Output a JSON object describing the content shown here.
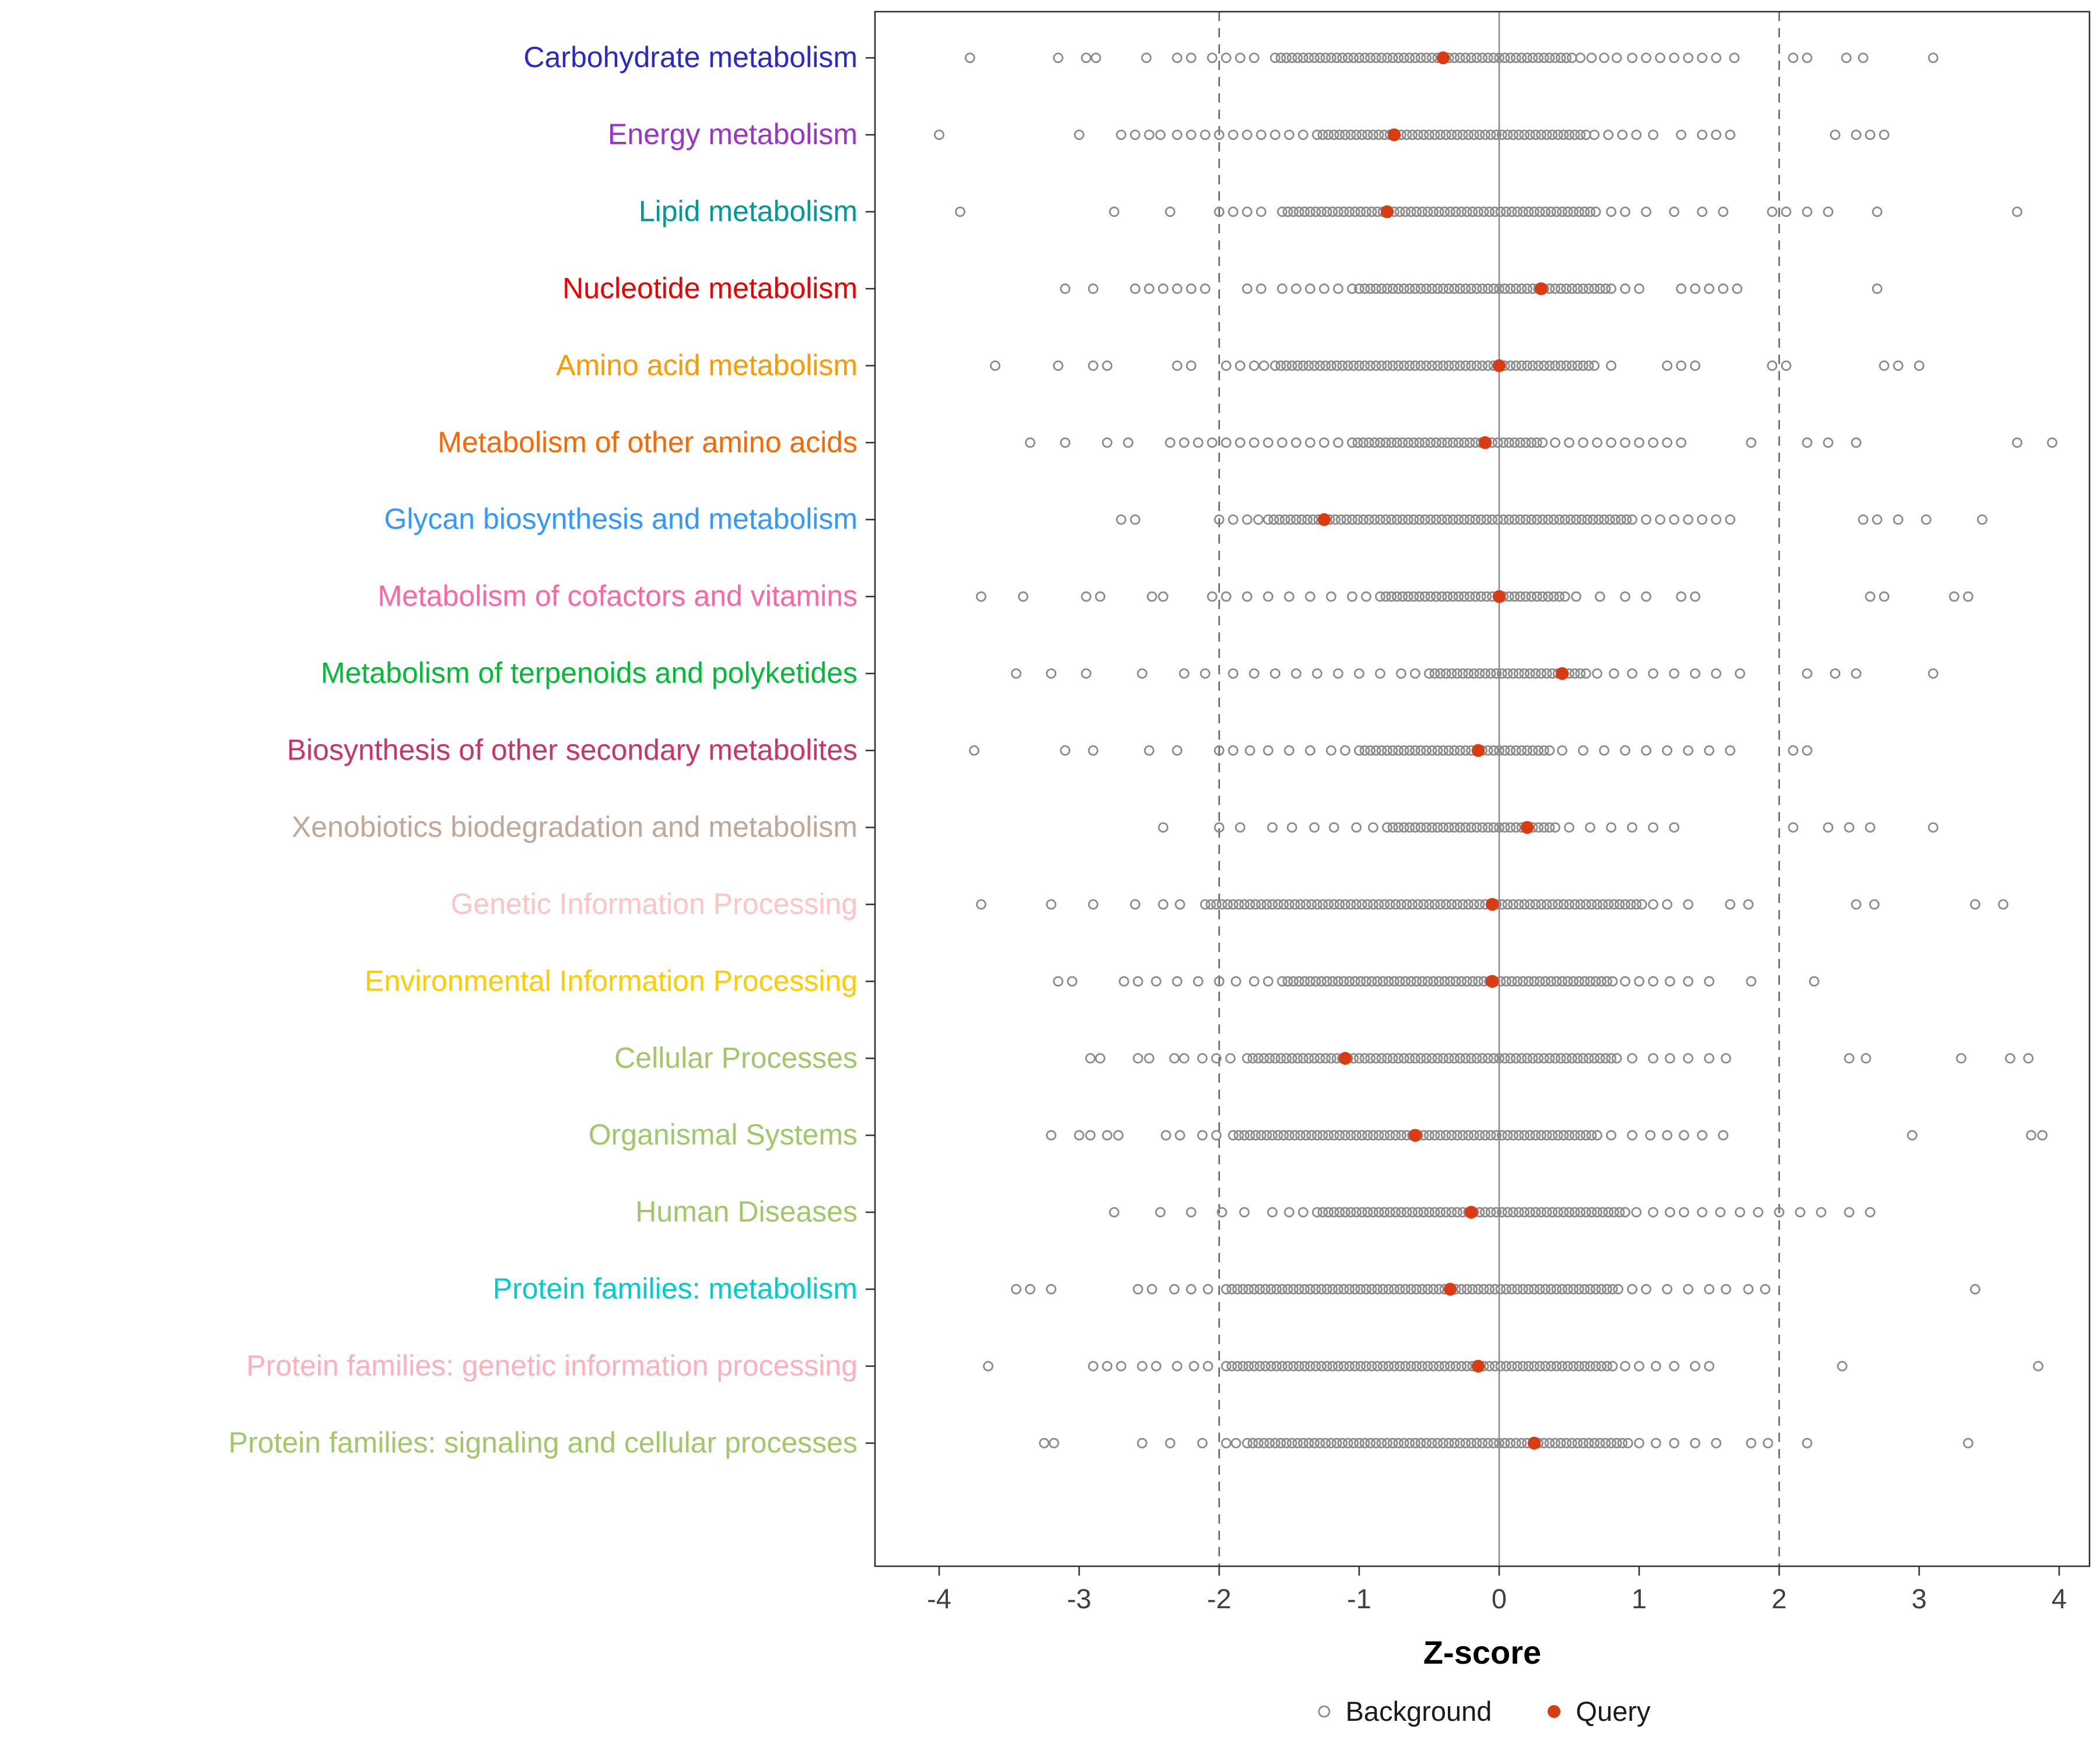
{
  "figure": {
    "background": "#ffffff",
    "panel_border": "#2e2e2e",
    "zero_line_color": "#8a8a8a",
    "dashed_line_color": "#5c5c5c",
    "tick_label_color": "#404040"
  },
  "chart_data": {
    "type": "scatter",
    "title": "",
    "xlabel": "Z-score",
    "ylabel": "",
    "xlim": [
      -4.4,
      4.2
    ],
    "x_ticks": [
      -4,
      -3,
      -2,
      -1,
      0,
      1,
      2,
      3,
      4
    ],
    "grid": "off",
    "band_step": 0.04,
    "ref_lines": {
      "zero": 0,
      "dashed": [
        -2,
        2
      ]
    },
    "point_colors": {
      "background_stroke": "#8c8c8c",
      "query_fill": "#d93b12"
    },
    "legend": [
      {
        "label": "Background",
        "type": "open-circle"
      },
      {
        "label": "Query",
        "type": "filled-circle"
      }
    ],
    "legend_position": "bottom",
    "categories": [
      {
        "label": "Carbohydrate metabolism",
        "color": "#2929cc",
        "query": -0.4,
        "band": [
          -1.6,
          0.5
        ],
        "scatter": [
          -3.78,
          -3.15,
          -2.95,
          -2.88,
          -2.52,
          -2.3,
          -2.2,
          -2.05,
          -1.95,
          -1.85,
          -1.75,
          0.58,
          0.66,
          0.75,
          0.84,
          0.95,
          1.05,
          1.15,
          1.25,
          1.35,
          1.45,
          1.55,
          1.68,
          2.1,
          2.2,
          2.48,
          2.6,
          3.1
        ]
      },
      {
        "label": "Energy metabolism",
        "color": "#9933cc",
        "query": -0.75,
        "band": [
          -1.3,
          0.6
        ],
        "scatter": [
          -4.0,
          -3.0,
          -2.7,
          -2.6,
          -2.5,
          -2.42,
          -2.3,
          -2.2,
          -2.1,
          -2.0,
          -1.9,
          -1.8,
          -1.7,
          -1.6,
          -1.5,
          -1.4,
          0.68,
          0.78,
          0.88,
          0.98,
          1.1,
          1.3,
          1.45,
          1.55,
          1.65,
          2.4,
          2.55,
          2.65,
          2.75
        ]
      },
      {
        "label": "Lipid metabolism",
        "color": "#009999",
        "query": -0.8,
        "band": [
          -1.55,
          0.7
        ],
        "scatter": [
          -3.85,
          -2.75,
          -2.35,
          -2.0,
          -1.9,
          -1.8,
          -1.7,
          0.8,
          0.9,
          1.05,
          1.25,
          1.45,
          1.6,
          1.95,
          2.05,
          2.2,
          2.35,
          2.7,
          3.7
        ]
      },
      {
        "label": "Nucleotide metabolism",
        "color": "#ee0000",
        "query": 0.3,
        "band": [
          -1.0,
          0.8
        ],
        "scatter": [
          -3.1,
          -2.9,
          -2.6,
          -2.5,
          -2.4,
          -2.3,
          -2.2,
          -2.1,
          -1.8,
          -1.7,
          -1.55,
          -1.45,
          -1.35,
          -1.25,
          -1.15,
          -1.05,
          0.9,
          1.0,
          1.3,
          1.4,
          1.5,
          1.6,
          1.7,
          2.7
        ]
      },
      {
        "label": "Amino acid metabolism",
        "color": "#ff9900",
        "query": 0.0,
        "band": [
          -1.6,
          0.7
        ],
        "scatter": [
          -3.6,
          -3.15,
          -2.9,
          -2.8,
          -2.3,
          -2.2,
          -1.95,
          -1.85,
          -1.75,
          -1.68,
          0.8,
          1.2,
          1.3,
          1.4,
          1.95,
          2.05,
          2.75,
          2.85,
          3.0
        ]
      },
      {
        "label": "Metabolism of other amino acids",
        "color": "#ff6600",
        "query": -0.1,
        "band": [
          -1.05,
          0.3
        ],
        "scatter": [
          -3.35,
          -3.1,
          -2.8,
          -2.65,
          -2.35,
          -2.25,
          -2.15,
          -2.05,
          -1.95,
          -1.85,
          -1.75,
          -1.65,
          -1.55,
          -1.45,
          -1.35,
          -1.25,
          -1.15,
          0.4,
          0.5,
          0.6,
          0.7,
          0.8,
          0.9,
          1.0,
          1.1,
          1.2,
          1.3,
          1.8,
          2.2,
          2.35,
          2.55,
          3.7,
          3.95
        ]
      },
      {
        "label": "Glycan biosynthesis and metabolism",
        "color": "#3399ff",
        "query": -1.25,
        "band": [
          -1.65,
          0.95
        ],
        "scatter": [
          -2.7,
          -2.6,
          -2.0,
          -1.9,
          -1.8,
          -1.72,
          1.05,
          1.15,
          1.25,
          1.35,
          1.45,
          1.55,
          1.65,
          2.6,
          2.7,
          2.85,
          3.05,
          3.45
        ]
      },
      {
        "label": "Metabolism of cofactors and vitamins",
        "color": "#ff66a3",
        "query": 0.0,
        "band": [
          -0.85,
          0.45
        ],
        "scatter": [
          -3.7,
          -3.4,
          -2.95,
          -2.85,
          -2.48,
          -2.4,
          -2.05,
          -1.95,
          -1.8,
          -1.65,
          -1.5,
          -1.35,
          -1.2,
          -1.05,
          -0.95,
          0.55,
          0.72,
          0.9,
          1.05,
          1.3,
          1.4,
          2.65,
          2.75,
          3.25,
          3.35
        ]
      },
      {
        "label": "Metabolism of terpenoids and polyketides",
        "color": "#00bb33",
        "query": 0.45,
        "band": [
          -0.5,
          0.6
        ],
        "scatter": [
          -3.45,
          -3.2,
          -2.95,
          -2.55,
          -2.25,
          -2.1,
          -1.9,
          -1.75,
          -1.6,
          -1.45,
          -1.3,
          -1.15,
          -1.0,
          -0.85,
          -0.7,
          -0.6,
          0.7,
          0.82,
          0.95,
          1.1,
          1.25,
          1.4,
          1.55,
          1.72,
          2.2,
          2.4,
          2.55,
          3.1
        ]
      },
      {
        "label": "Biosynthesis of other secondary metabolites",
        "color": "#cc3366",
        "query": -0.15,
        "band": [
          -1.0,
          0.35
        ],
        "scatter": [
          -3.75,
          -3.1,
          -2.9,
          -2.5,
          -2.3,
          -2.0,
          -1.9,
          -1.78,
          -1.65,
          -1.5,
          -1.35,
          -1.2,
          -1.1,
          0.45,
          0.6,
          0.75,
          0.9,
          1.05,
          1.2,
          1.35,
          1.5,
          1.65,
          2.1,
          2.2
        ]
      },
      {
        "label": "Xenobiotics biodegradation and metabolism",
        "color": "#c2a797",
        "query": 0.2,
        "band": [
          -0.8,
          0.4
        ],
        "scatter": [
          -2.4,
          -2.0,
          -1.85,
          -1.62,
          -1.48,
          -1.32,
          -1.18,
          -1.02,
          -0.9,
          0.5,
          0.65,
          0.8,
          0.95,
          1.1,
          1.25,
          2.1,
          2.35,
          2.5,
          2.65,
          3.1
        ]
      },
      {
        "label": "Genetic Information Processing",
        "color": "#ffc4c4",
        "query": -0.05,
        "band": [
          -2.1,
          1.0
        ],
        "scatter": [
          -3.7,
          -3.2,
          -2.9,
          -2.6,
          -2.4,
          -2.28,
          1.1,
          1.2,
          1.35,
          1.65,
          1.78,
          2.55,
          2.68,
          3.4,
          3.6
        ]
      },
      {
        "label": "Environmental Information Processing",
        "color": "#ffcc00",
        "query": -0.05,
        "band": [
          -1.55,
          0.8
        ],
        "scatter": [
          -3.15,
          -3.05,
          -2.68,
          -2.58,
          -2.45,
          -2.3,
          -2.15,
          -2.0,
          -1.88,
          -1.75,
          -1.65,
          0.9,
          1.0,
          1.1,
          1.22,
          1.35,
          1.5,
          1.8,
          2.25
        ]
      },
      {
        "label": "Cellular Processes",
        "color": "#a0c868",
        "query": -1.1,
        "band": [
          -1.8,
          0.85
        ],
        "scatter": [
          -2.92,
          -2.85,
          -2.58,
          -2.5,
          -2.32,
          -2.25,
          -2.12,
          -2.02,
          -1.92,
          0.95,
          1.1,
          1.22,
          1.35,
          1.5,
          1.62,
          2.5,
          2.62,
          3.3,
          3.65,
          3.78
        ]
      },
      {
        "label": "Organismal Systems",
        "color": "#a0c868",
        "query": -0.6,
        "band": [
          -1.9,
          0.7
        ],
        "scatter": [
          -3.2,
          -3.0,
          -2.92,
          -2.8,
          -2.72,
          -2.38,
          -2.28,
          -2.12,
          -2.02,
          0.8,
          0.95,
          1.08,
          1.2,
          1.32,
          1.45,
          1.6,
          2.95,
          3.8,
          3.88
        ]
      },
      {
        "label": "Human Diseases",
        "color": "#a0c868",
        "query": -0.2,
        "band": [
          -1.3,
          0.9
        ],
        "scatter": [
          -2.75,
          -2.42,
          -2.2,
          -1.98,
          -1.82,
          -1.62,
          -1.5,
          -1.4,
          0.98,
          1.1,
          1.22,
          1.32,
          1.45,
          1.58,
          1.72,
          1.85,
          2.0,
          2.15,
          2.3,
          2.5,
          2.65
        ]
      },
      {
        "label": "Protein families: metabolism",
        "color": "#00cccc",
        "query": -0.35,
        "band": [
          -1.95,
          0.85
        ],
        "scatter": [
          -3.45,
          -3.35,
          -3.2,
          -2.58,
          -2.48,
          -2.32,
          -2.2,
          -2.08,
          0.95,
          1.05,
          1.2,
          1.35,
          1.5,
          1.62,
          1.78,
          1.9,
          3.4
        ]
      },
      {
        "label": "Protein families: genetic information processing",
        "color": "#ffb0bc",
        "query": -0.15,
        "band": [
          -1.95,
          0.8
        ],
        "scatter": [
          -3.65,
          -2.9,
          -2.8,
          -2.7,
          -2.55,
          -2.45,
          -2.3,
          -2.18,
          -2.08,
          0.9,
          1.0,
          1.12,
          1.25,
          1.4,
          1.5,
          2.45,
          3.85
        ]
      },
      {
        "label": "Protein families: signaling and cellular processes",
        "color": "#a0c868",
        "query": 0.25,
        "band": [
          -1.8,
          0.9
        ],
        "scatter": [
          -3.25,
          -3.18,
          -2.55,
          -2.35,
          -2.12,
          -1.95,
          -1.88,
          1.0,
          1.12,
          1.25,
          1.4,
          1.55,
          1.8,
          1.92,
          2.2,
          3.35
        ]
      }
    ]
  }
}
